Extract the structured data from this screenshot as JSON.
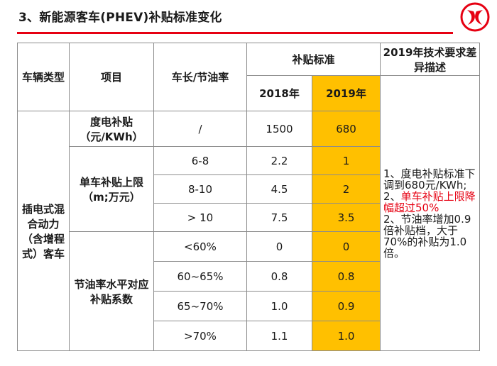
{
  "slide": {
    "title": "3、新能源客车(PHEV)补贴标准变化",
    "brand_color": "#e60012",
    "highlight_color": "#ffc000"
  },
  "table": {
    "headers": {
      "vehicle_type": "车辆类型",
      "item": "项目",
      "length_rate": "车长/节油率",
      "subsidy_standard": "补贴标准",
      "year_2018": "2018年",
      "year_2019": "2019年",
      "diff_desc": "2019年技术要求差异描述"
    },
    "vehicle_type": "插电式混合动力（含增程式）客车",
    "groups": {
      "kwh": "度电补贴（元/KWh）",
      "cap": "单车补贴上限（m;万元）",
      "coef": "节油率水平对应补贴系数"
    },
    "rows": [
      {
        "cond": "/",
        "v2018": "1500",
        "v2019": "680"
      },
      {
        "cond": "6-8",
        "v2018": "2.2",
        "v2019": "1"
      },
      {
        "cond": "8-10",
        "v2018": "4.5",
        "v2019": "2"
      },
      {
        "cond": "> 10",
        "v2018": "7.5",
        "v2019": "3.5"
      },
      {
        "cond": "<60%",
        "v2018": "0",
        "v2019": "0"
      },
      {
        "cond": "60~65%",
        "v2018": "0.8",
        "v2019": "0.8"
      },
      {
        "cond": "65~70%",
        "v2018": "1.0",
        "v2019": "0.9"
      },
      {
        "cond": ">70%",
        "v2018": "1.1",
        "v2019": "1.0"
      }
    ],
    "description": {
      "line1": "1、度电补贴标准下调到680元/KWh;",
      "line2_prefix": "2、",
      "line2_red": "单车补贴上限降幅超过50%",
      "line3": "2、节油率增加0.9倍补贴档，大于70%的补贴为1.0倍。"
    }
  }
}
